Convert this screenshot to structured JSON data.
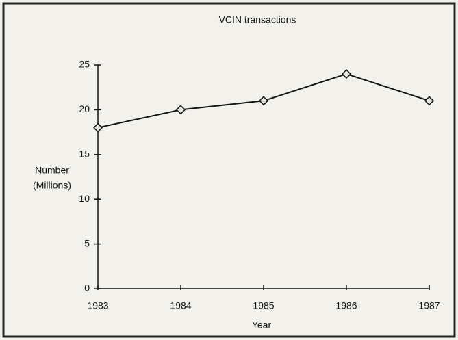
{
  "chart_data": {
    "type": "line",
    "title": "VCIN transactions",
    "xlabel": "Year",
    "ylabel": [
      "Number",
      "(Millions)"
    ],
    "x": [
      1983,
      1984,
      1985,
      1986,
      1987
    ],
    "series": [
      {
        "name": "VCIN transactions",
        "color": "#111111",
        "values": [
          18,
          20,
          21,
          24,
          21
        ]
      }
    ],
    "xlim": [
      1983,
      1987
    ],
    "xticks": [
      1983,
      1984,
      1985,
      1986,
      1987
    ],
    "ylim": [
      0,
      25
    ],
    "yticks": [
      0,
      5,
      10,
      15,
      20,
      25
    ],
    "grid": false
  }
}
